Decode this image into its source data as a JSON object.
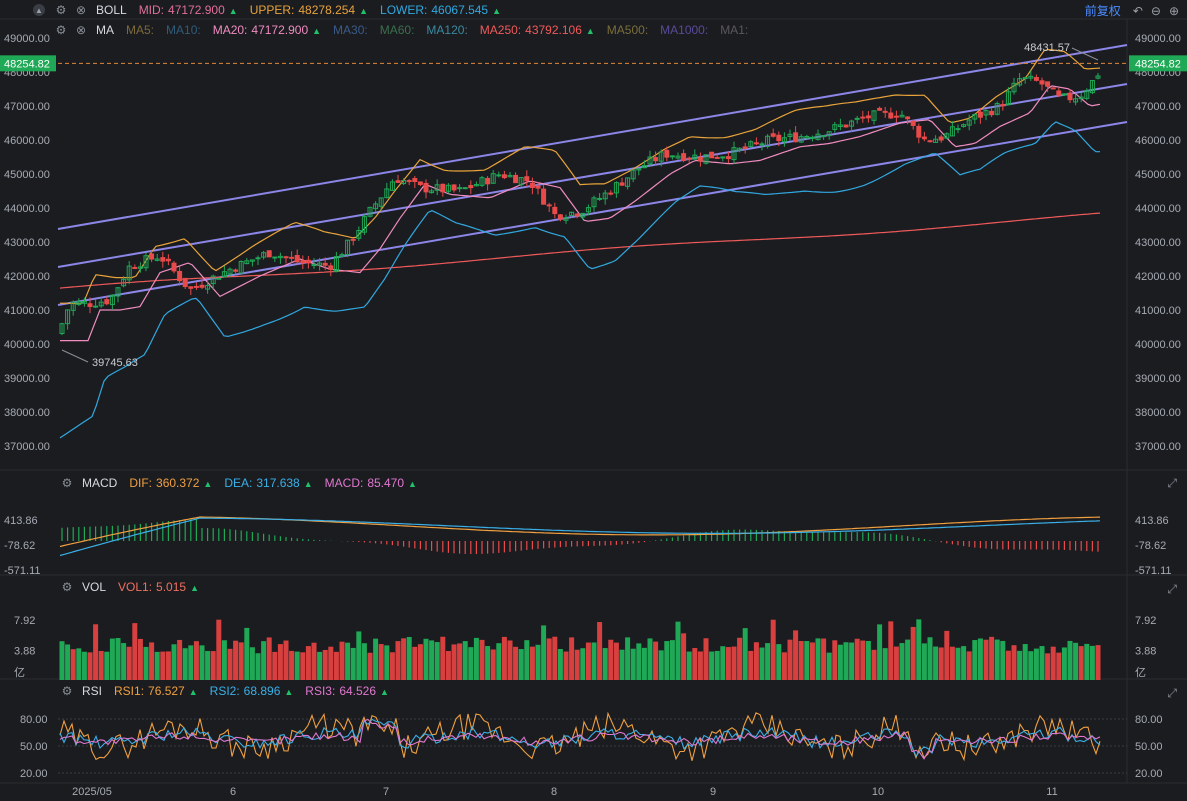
{
  "toolbar": {
    "fq_label": "前复权"
  },
  "boll": {
    "name": "BOLL",
    "items": [
      {
        "label": "MID:",
        "value": "47172.900",
        "color": "#e0709a"
      },
      {
        "label": "UPPER:",
        "value": "48278.254",
        "color": "#e8a33a"
      },
      {
        "label": "LOWER:",
        "value": "46067.545",
        "color": "#31a8e0"
      }
    ]
  },
  "ma": {
    "name": "MA",
    "items": [
      {
        "label": "MA5:",
        "value": "",
        "color": "#7d6a3a"
      },
      {
        "label": "MA10:",
        "value": "",
        "color": "#2f5d7a"
      },
      {
        "label": "MA20:",
        "value": "47172.900",
        "color": "#f08cc0"
      },
      {
        "label": "MA30:",
        "value": "",
        "color": "#3a5c8a"
      },
      {
        "label": "MA60:",
        "value": "",
        "color": "#3c6e4c"
      },
      {
        "label": "MA120:",
        "value": "",
        "color": "#3a8aa0"
      },
      {
        "label": "MA250:",
        "value": "43792.106",
        "color": "#f05a5a"
      },
      {
        "label": "MA500:",
        "value": "",
        "color": "#7a6e3a"
      },
      {
        "label": "MA1000:",
        "value": "",
        "color": "#5a4a9a"
      },
      {
        "label": "MA1:",
        "value": "",
        "color": "#5a5a5a"
      }
    ]
  },
  "macd": {
    "name": "MACD",
    "items": [
      {
        "label": "DIF:",
        "value": "360.372",
        "color": "#f0a040"
      },
      {
        "label": "DEA:",
        "value": "317.638",
        "color": "#3ab0e8"
      },
      {
        "label": "MACD:",
        "value": "85.470",
        "color": "#e078d0"
      }
    ]
  },
  "vol": {
    "name": "VOL",
    "items": [
      {
        "label": "VOL1:",
        "value": "5.015",
        "color": "#f07060"
      }
    ]
  },
  "rsi": {
    "name": "RSI",
    "items": [
      {
        "label": "RSI1:",
        "value": "76.527",
        "color": "#f0a040"
      },
      {
        "label": "RSI2:",
        "value": "68.896",
        "color": "#3ab0e8"
      },
      {
        "label": "RSI3:",
        "value": "64.526",
        "color": "#e078d0"
      }
    ]
  },
  "chart_data": {
    "type": "candlestick",
    "price_axis": {
      "ticks": [
        "49000.00",
        "48000.00",
        "47000.00",
        "46000.00",
        "45000.00",
        "44000.00",
        "43000.00",
        "42000.00",
        "41000.00",
        "40000.00",
        "39000.00",
        "38000.00",
        "37000.00"
      ],
      "range": [
        36500,
        49300
      ]
    },
    "current_price": "48254.82",
    "high_label": "48431.57",
    "low_label": "39745.63",
    "macd_axis": {
      "ticks": [
        "413.86",
        "-78.62",
        "-571.11"
      ]
    },
    "vol_axis": {
      "ticks": [
        "7.92",
        "3.88",
        "亿"
      ]
    },
    "rsi_axis": {
      "ticks": [
        "80.00",
        "50.00",
        "20.00"
      ]
    },
    "x_labels": [
      "2025/05",
      "6",
      "7",
      "8",
      "9",
      "10",
      "11"
    ]
  }
}
